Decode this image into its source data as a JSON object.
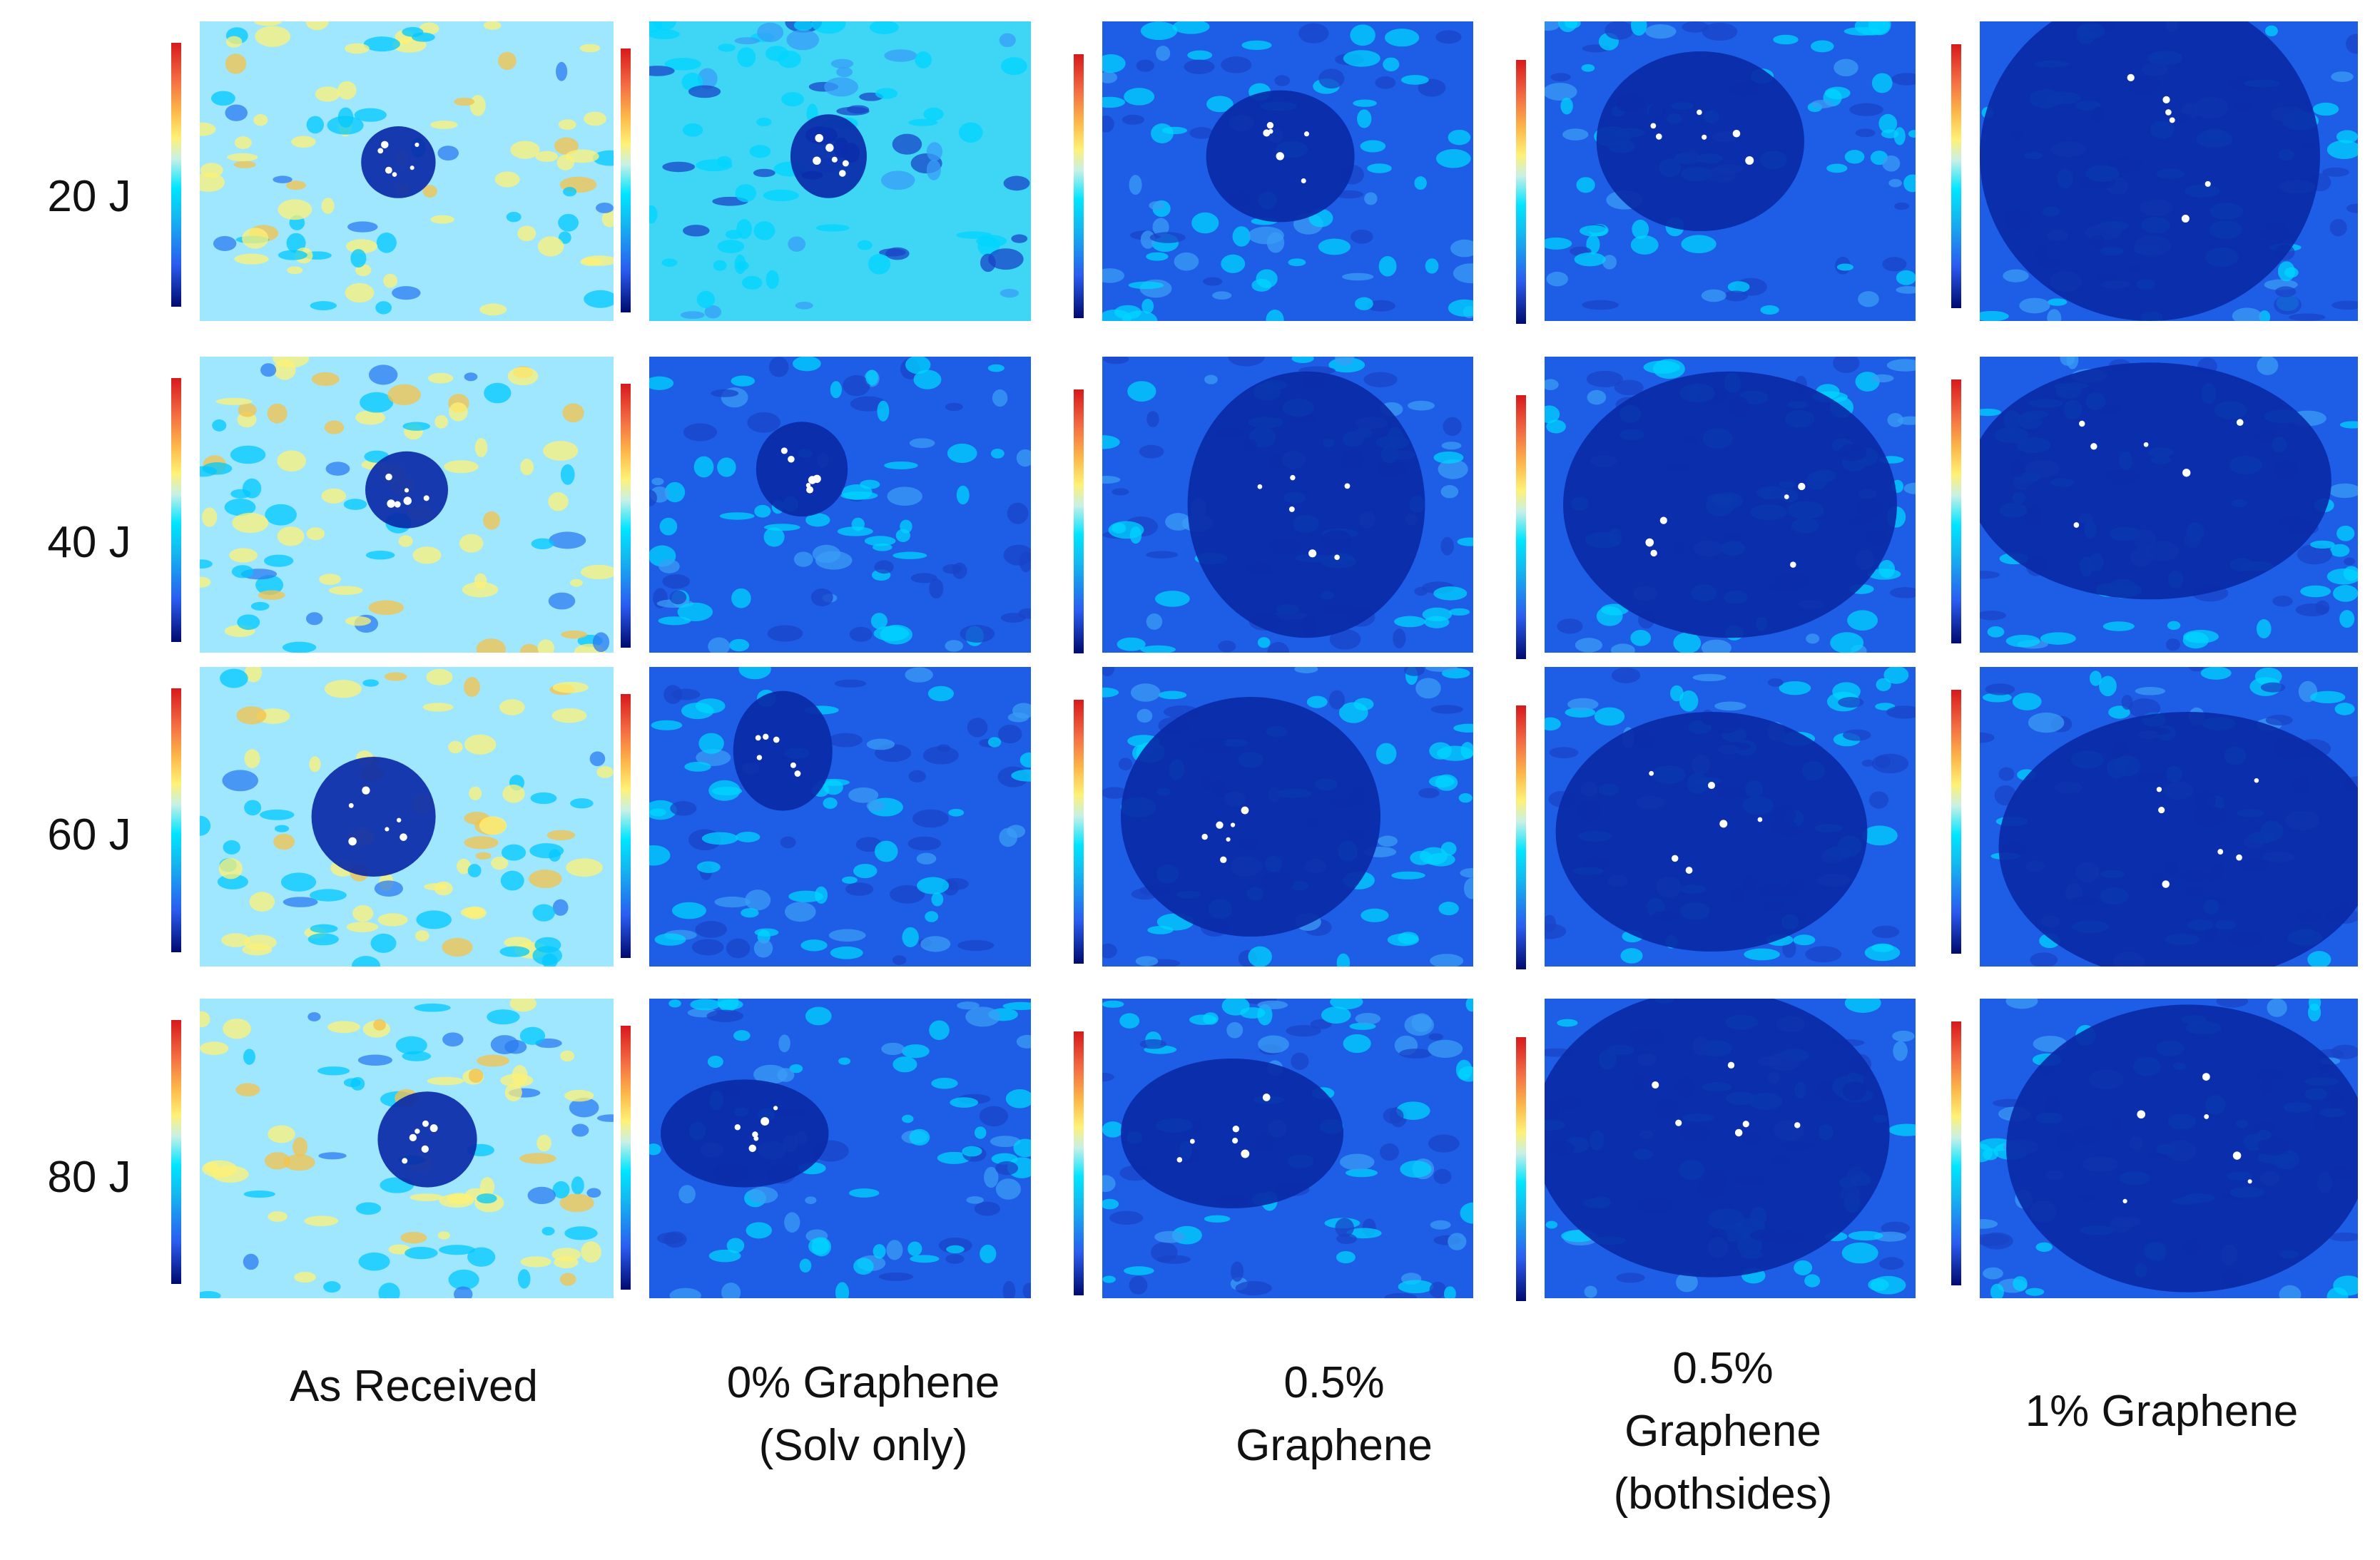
{
  "figure": {
    "rows": [
      {
        "label": "20 J"
      },
      {
        "label": "40 J"
      },
      {
        "label": "60 J"
      },
      {
        "label": "80 J"
      }
    ],
    "columns": [
      {
        "label_lines": [
          "As Received"
        ]
      },
      {
        "label_lines": [
          "0% Graphene",
          "(Solv only)"
        ]
      },
      {
        "label_lines": [
          "0.5%",
          "Graphene"
        ]
      },
      {
        "label_lines": [
          "0.5%",
          "Graphene",
          "(bothsides)"
        ]
      },
      {
        "label_lines": [
          "1% Graphene"
        ]
      }
    ],
    "colormap": {
      "top": "#d7191c",
      "mid": "#00e5ff",
      "bottom": "#000a6e"
    },
    "colors": {
      "background_as_received": "#9fe6ff",
      "background_treated": "#1e5ee6",
      "damage_region": "#0a2aa8",
      "highlight": "#ffffff"
    }
  }
}
